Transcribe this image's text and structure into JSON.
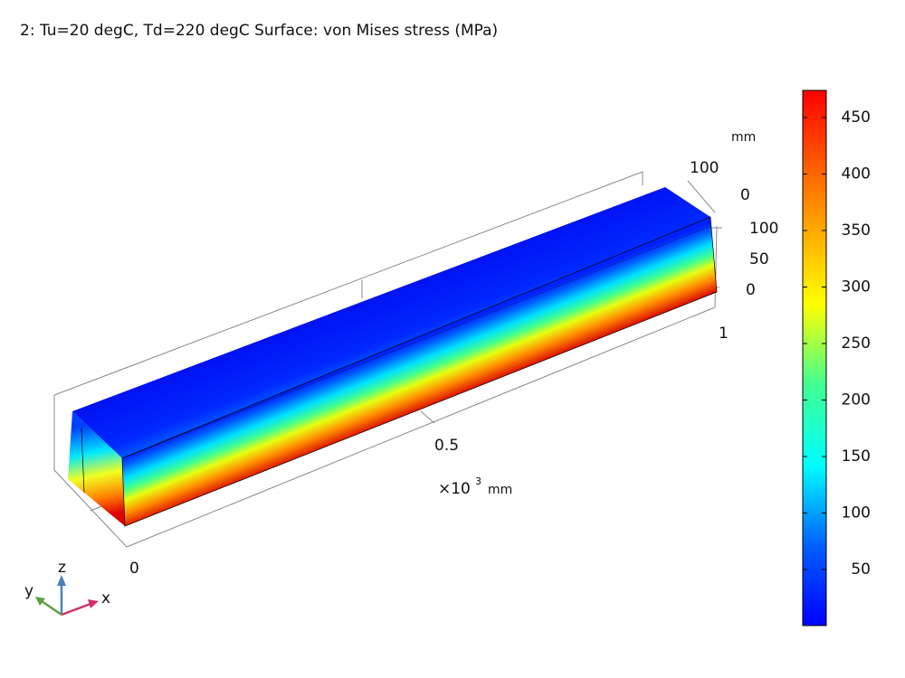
{
  "title": "2: Tu=20 degC, Td=220 degC   Surface: von Mises stress (MPa)",
  "axes": {
    "x": {
      "ticks": [
        "0",
        "0.5",
        "1"
      ],
      "multiplier": "×10",
      "exponent": "3",
      "unit": "mm"
    },
    "y": {
      "unit": "mm",
      "ticks": [
        "100",
        "0"
      ]
    },
    "z": {
      "ticks": [
        "100",
        "50",
        "0"
      ]
    }
  },
  "colorbar": {
    "ticks": [
      "450",
      "400",
      "350",
      "300",
      "250",
      "200",
      "150",
      "100",
      "50"
    ]
  },
  "triad": {
    "z": "z",
    "y": "y",
    "x": "x"
  }
}
